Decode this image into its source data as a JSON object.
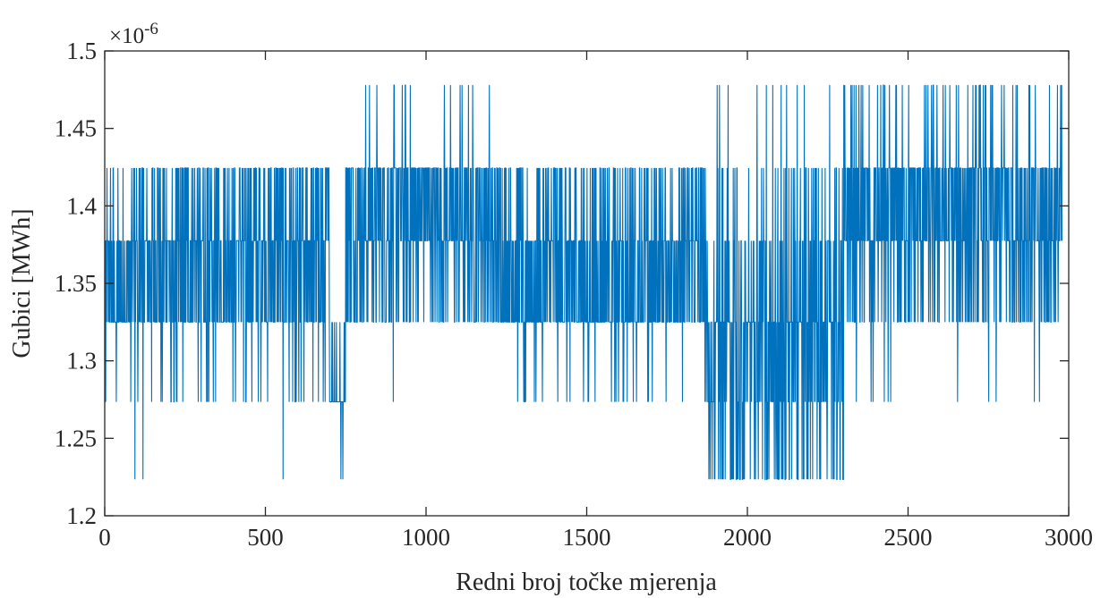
{
  "chart_data": {
    "type": "line",
    "xlabel": "Redni broj točke mjerenja",
    "ylabel": "Gubici [MWh]",
    "y_exponent_label": "×10",
    "y_exponent": "-6",
    "xlim": [
      0,
      3000
    ],
    "ylim": [
      1.2,
      1.5
    ],
    "x_ticks": [
      0,
      500,
      1000,
      1500,
      2000,
      2500,
      3000
    ],
    "x_tick_labels": [
      "0",
      "500",
      "1000",
      "1500",
      "2000",
      "2500",
      "3000"
    ],
    "y_ticks": [
      1.2,
      1.25,
      1.3,
      1.35,
      1.4,
      1.45,
      1.5
    ],
    "y_tick_labels": [
      "1.2",
      "1.25",
      "1.3",
      "1.35",
      "1.4",
      "1.45",
      "1.5"
    ],
    "grid": false,
    "line_color": "#0072BD",
    "n_points": 2980,
    "levels": [
      1.2235,
      1.2735,
      1.325,
      1.3775,
      1.4245,
      1.478
    ],
    "series_segments": [
      {
        "x_start": 0,
        "x_end": 80,
        "values_seen": [
          1.2735,
          1.325,
          1.3775,
          1.4245
        ]
      },
      {
        "x_start": 80,
        "x_end": 700,
        "values_seen": [
          1.2235,
          1.2735,
          1.325,
          1.3775,
          1.4245
        ]
      },
      {
        "x_start": 700,
        "x_end": 750,
        "values_seen": [
          1.2235,
          1.2735,
          1.325
        ]
      },
      {
        "x_start": 750,
        "x_end": 1200,
        "values_seen": [
          1.2735,
          1.325,
          1.3775,
          1.4245,
          1.478
        ]
      },
      {
        "x_start": 1200,
        "x_end": 1870,
        "values_seen": [
          1.2735,
          1.325,
          1.3775,
          1.4245
        ]
      },
      {
        "x_start": 1870,
        "x_end": 2300,
        "values_seen": [
          1.2235,
          1.2735,
          1.325,
          1.3775,
          1.4245,
          1.478
        ]
      },
      {
        "x_start": 2300,
        "x_end": 2980,
        "values_seen": [
          1.2735,
          1.325,
          1.3775,
          1.4245,
          1.478
        ]
      }
    ]
  }
}
